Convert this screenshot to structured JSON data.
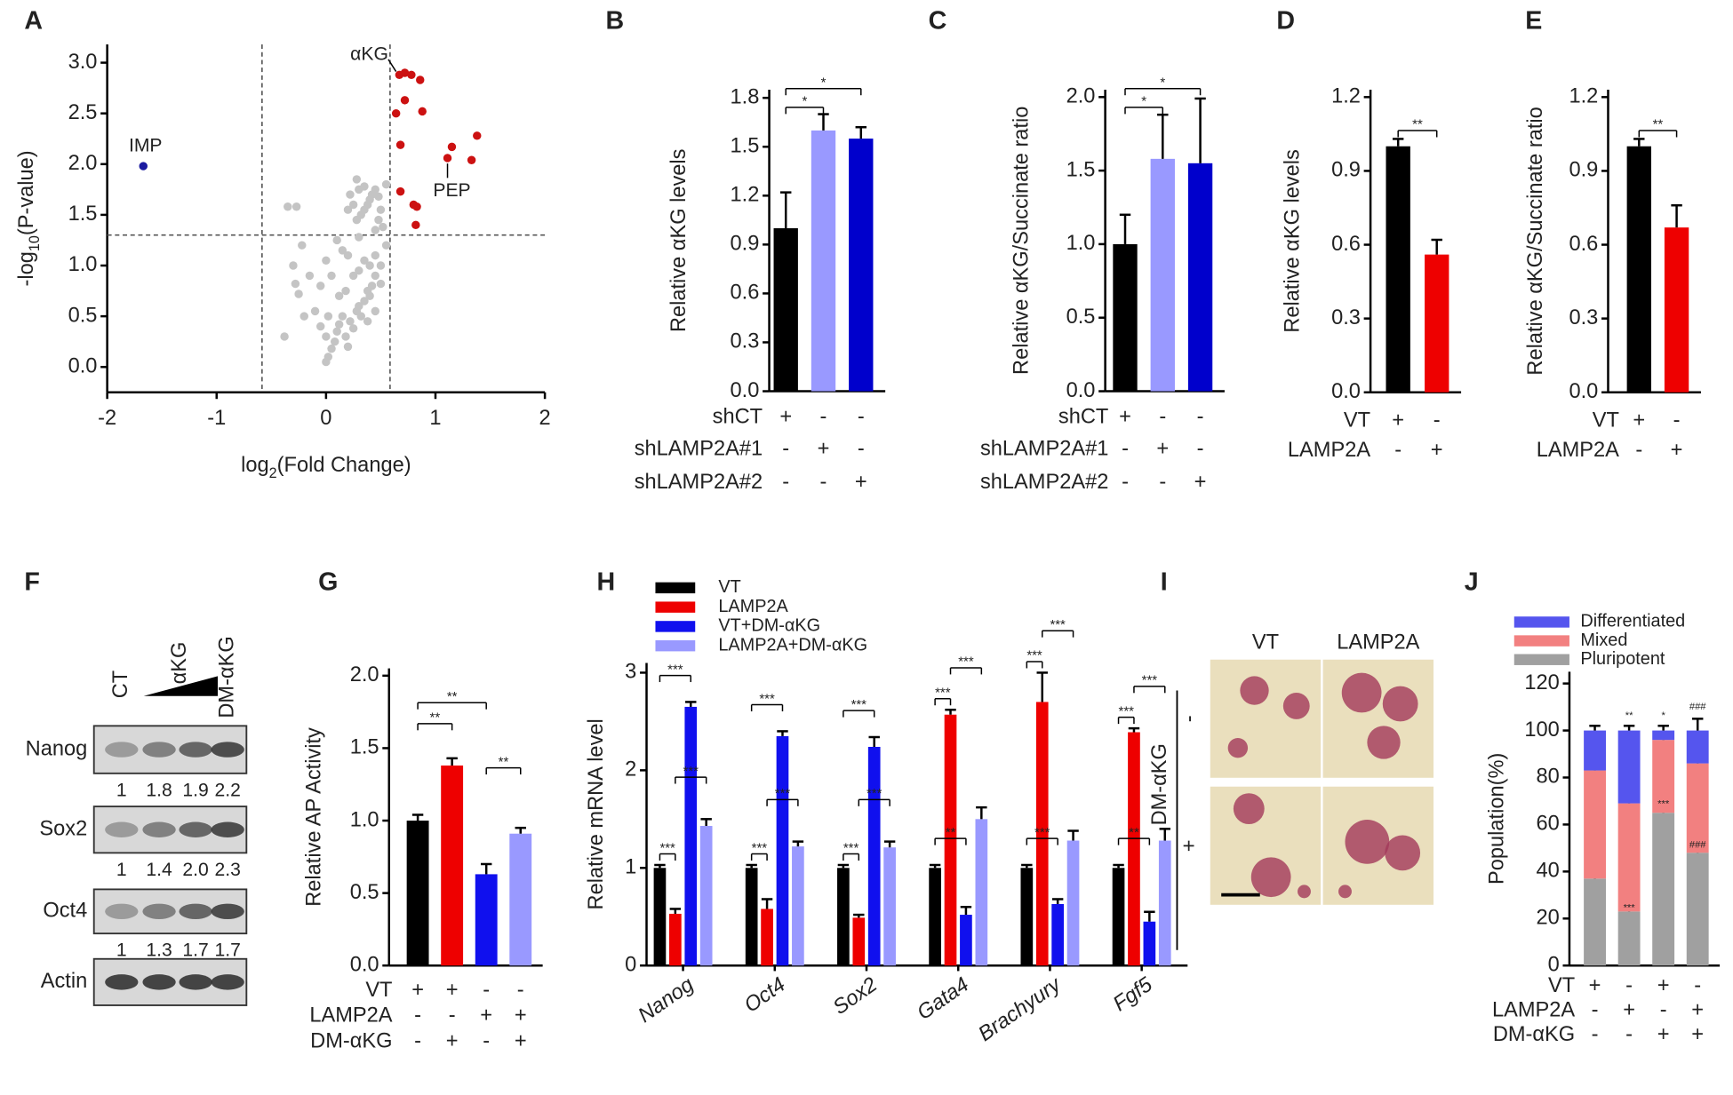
{
  "chart_data": [
    {
      "type": "scatter",
      "panel_label": "A",
      "ylabel_parts": [
        "-log",
        "10",
        "(P-value)"
      ],
      "xlabel_parts": [
        "log",
        "2",
        "(Fold Change)"
      ],
      "xlim": [
        -2,
        2
      ],
      "ylim": [
        -0.25,
        3.18
      ],
      "xticks": [
        -2,
        -1,
        0,
        1,
        2
      ],
      "yticks": [
        {
          "value": 0,
          "label": "0.0"
        },
        0.5,
        {
          "value": 1,
          "label": "1.0"
        },
        1.5,
        {
          "value": 2,
          "label": "2.0"
        },
        2.5,
        {
          "value": 3,
          "label": "3.0"
        }
      ],
      "thresholds": {
        "x": [
          -0.585,
          0.585
        ],
        "y": 1.3
      },
      "series": [
        {
          "color": "#c4c4c4",
          "x": [
            -0.35,
            -0.27,
            -0.3,
            -0.28,
            -0.25,
            -0.22,
            -0.15,
            -0.38,
            -0.2,
            -0.1,
            -0.05,
            0.0,
            0.02,
            0.05,
            0.08,
            0.0,
            0.1,
            0.12,
            0.15,
            0.18,
            0.2,
            0.22,
            0.25,
            0.28,
            0.3,
            0.32,
            0.35,
            0.38,
            0.4,
            0.42,
            0.45,
            0.5,
            0.55,
            0.3,
            0.25,
            0.2,
            0.15,
            0.1,
            0.05,
            0.18,
            0.35,
            0.4,
            0.45,
            0.3,
            0.28,
            0.32,
            0.35,
            0.38,
            0.4,
            0.42,
            0.45,
            0.3,
            0.28,
            0.35,
            0.48,
            0.5,
            0.55,
            0.25,
            0.2,
            0.22,
            0.48,
            0.52,
            0.45,
            0.5,
            0.45,
            0.38,
            0.12,
            -0.05,
            0.0,
            0.02
          ],
          "values": [
            1.58,
            1.58,
            1.0,
            0.82,
            0.72,
            1.2,
            0.9,
            0.3,
            0.5,
            0.55,
            0.4,
            0.05,
            0.1,
            0.18,
            0.25,
            0.3,
            0.35,
            0.42,
            0.5,
            0.3,
            0.2,
            0.45,
            0.38,
            0.55,
            0.6,
            0.5,
            0.65,
            0.75,
            0.7,
            0.8,
            0.9,
            1.0,
            1.2,
            0.95,
            0.9,
            1.1,
            1.15,
            1.25,
            0.9,
            0.75,
            1.05,
            1.0,
            1.1,
            1.28,
            1.45,
            1.5,
            1.55,
            1.6,
            1.65,
            1.7,
            1.75,
            1.75,
            1.85,
            1.78,
            1.68,
            1.55,
            1.8,
            1.6,
            1.55,
            1.7,
            1.45,
            1.38,
            1.35,
            0.82,
            0.55,
            0.45,
            0.7,
            0.8,
            1.05,
            0.5
          ]
        },
        {
          "color": "#cc1111",
          "x": [
            0.67,
            0.72,
            0.78,
            0.86,
            0.64,
            0.72,
            0.88,
            1.15,
            1.38,
            0.68,
            1.33,
            1.11,
            0.68,
            0.8,
            0.83,
            0.82
          ],
          "values": [
            2.88,
            2.9,
            2.88,
            2.83,
            2.5,
            2.63,
            2.52,
            2.17,
            2.28,
            2.19,
            2.04,
            2.06,
            1.73,
            1.6,
            1.58,
            1.4
          ]
        },
        {
          "color": "#1a1aa0",
          "x": [
            -1.67
          ],
          "values": [
            1.98
          ]
        }
      ],
      "annotations": [
        "αKG",
        "PEP",
        "IMP"
      ]
    },
    {
      "type": "bar",
      "panel_label": "B",
      "ylabel": "Relative αKG levels",
      "ylim": [
        0,
        1.85
      ],
      "yticks": [
        {
          "value": 0,
          "label": "0.0"
        },
        0.3,
        0.6,
        0.9,
        1.2,
        1.5,
        1.8
      ],
      "values": [
        1.0,
        1.6,
        1.55
      ],
      "errors": [
        0.22,
        0.1,
        0.07
      ],
      "colors": [
        "#000000",
        "#9999ff",
        "#0000cc"
      ],
      "conditions": [
        {
          "name": "shCT",
          "signs": [
            "+",
            "-",
            "-"
          ]
        },
        {
          "name": "shLAMP2A#1",
          "signs": [
            "-",
            "+",
            "-"
          ]
        },
        {
          "name": "shLAMP2A#2",
          "signs": [
            "-",
            "-",
            "+"
          ]
        }
      ],
      "significance": [
        "*",
        "*"
      ]
    },
    {
      "type": "bar",
      "panel_label": "C",
      "ylabel": "Relative αKG/Succinate ratio",
      "ylim": [
        0,
        2.05
      ],
      "yticks": [
        {
          "value": 0,
          "label": "0.0"
        },
        0.5,
        {
          "value": 1,
          "label": "1.0"
        },
        1.5,
        {
          "value": 2,
          "label": "2.0"
        }
      ],
      "values": [
        1.0,
        1.58,
        1.55
      ],
      "errors": [
        0.2,
        0.3,
        0.44
      ],
      "colors": [
        "#000000",
        "#9999ff",
        "#0000cc"
      ],
      "conditions": [
        {
          "name": "shCT",
          "signs": [
            "+",
            "-",
            "-"
          ]
        },
        {
          "name": "shLAMP2A#1",
          "signs": [
            "-",
            "+",
            "-"
          ]
        },
        {
          "name": "shLAMP2A#2",
          "signs": [
            "-",
            "-",
            "+"
          ]
        }
      ],
      "significance": [
        "*",
        "*"
      ]
    },
    {
      "type": "bar",
      "panel_label": "D",
      "ylabel": "Relative αKG levels",
      "ylim": [
        0,
        1.23
      ],
      "yticks": [
        {
          "value": 0,
          "label": "0.0"
        },
        0.3,
        0.6,
        0.9,
        1.2
      ],
      "values": [
        1.0,
        0.56
      ],
      "errors": [
        0.03,
        0.06
      ],
      "colors": [
        "#000000",
        "#ee0000"
      ],
      "conditions": [
        {
          "name": "VT",
          "signs": [
            "+",
            "-"
          ]
        },
        {
          "name": "LAMP2A",
          "signs": [
            "-",
            "+"
          ]
        }
      ],
      "significance": [
        "**"
      ]
    },
    {
      "type": "bar",
      "panel_label": "E",
      "ylabel": "Relative αKG/Succinate ratio",
      "ylim": [
        0,
        1.23
      ],
      "yticks": [
        {
          "value": 0,
          "label": "0.0"
        },
        0.3,
        0.6,
        0.9,
        1.2
      ],
      "values": [
        1.0,
        0.67
      ],
      "errors": [
        0.03,
        0.09
      ],
      "colors": [
        "#000000",
        "#ee0000"
      ],
      "conditions": [
        {
          "name": "VT",
          "signs": [
            "+",
            "-"
          ]
        },
        {
          "name": "LAMP2A",
          "signs": [
            "-",
            "+"
          ]
        }
      ],
      "significance": [
        "**"
      ]
    },
    {
      "type": "blot",
      "panel_label": "F",
      "lanes": [
        "CT",
        "αKG",
        "DM-αKG"
      ],
      "rows": [
        {
          "name": "Nanog",
          "quant": [
            "1",
            "1.8",
            "1.9",
            "2.2"
          ]
        },
        {
          "name": "Sox2",
          "quant": [
            "1",
            "1.4",
            "2.0",
            "2.3"
          ]
        },
        {
          "name": "Oct4",
          "quant": [
            "1",
            "1.3",
            "1.7",
            "1.7"
          ]
        },
        {
          "name": "Actin"
        }
      ]
    },
    {
      "type": "bar",
      "panel_label": "G",
      "ylabel": "Relative AP Activity",
      "ylim": [
        0,
        2.05
      ],
      "yticks": [
        {
          "value": 0,
          "label": "0.0"
        },
        0.5,
        {
          "value": 1,
          "label": "1.0"
        },
        1.5,
        {
          "value": 2,
          "label": "2.0"
        }
      ],
      "values": [
        1.0,
        1.38,
        0.63,
        0.91
      ],
      "errors": [
        0.04,
        0.05,
        0.07,
        0.04
      ],
      "colors": [
        "#000000",
        "#ee0000",
        "#1010ee",
        "#9999ff"
      ],
      "conditions": [
        {
          "name": "VT",
          "signs": [
            "+",
            "+",
            "-",
            "-"
          ]
        },
        {
          "name": "LAMP2A",
          "signs": [
            "-",
            "-",
            "+",
            "+"
          ]
        },
        {
          "name": "DM-αKG",
          "signs": [
            "-",
            "+",
            "-",
            "+"
          ]
        }
      ],
      "significance": [
        "**",
        "**",
        "**"
      ]
    },
    {
      "type": "grouped_bar",
      "panel_label": "H",
      "ylabel": "Relative mRNA level",
      "ylim": [
        0,
        3.1
      ],
      "yticks": [
        0,
        1,
        2,
        3
      ],
      "categories": [
        "Nanog",
        "Oct4",
        "Sox2",
        "Gata4",
        "Brachyury",
        "Fgf5"
      ],
      "series": [
        {
          "name": "VT",
          "color": "#000000",
          "values": [
            1.0,
            1.0,
            1.0,
            1.0,
            1.0,
            1.0
          ],
          "errors": [
            0.03,
            0.03,
            0.03,
            0.03,
            0.03,
            0.03
          ]
        },
        {
          "name": "LAMP2A",
          "color": "#ee0000",
          "values": [
            0.53,
            0.58,
            0.49,
            2.57,
            2.7,
            2.39
          ],
          "errors": [
            0.05,
            0.1,
            0.03,
            0.05,
            0.3,
            0.04
          ]
        },
        {
          "name": "VT+DM-αKG",
          "color": "#1010ee",
          "values": [
            2.65,
            2.35,
            2.24,
            0.52,
            0.63,
            0.45
          ],
          "errors": [
            0.05,
            0.05,
            0.1,
            0.08,
            0.05,
            0.1
          ]
        },
        {
          "name": "LAMP2A+DM-αKG",
          "color": "#9999ff",
          "values": [
            1.43,
            1.22,
            1.21,
            1.5,
            1.28,
            1.28
          ],
          "errors": [
            0.07,
            0.05,
            0.06,
            0.12,
            0.1,
            0.12
          ]
        }
      ],
      "significance": [
        [
          "***",
          "***",
          "***"
        ],
        [
          "***",
          "***",
          "***"
        ],
        [
          "***",
          "***",
          "***"
        ],
        [
          "***",
          "**",
          "***"
        ],
        [
          "***",
          "***",
          "***"
        ],
        [
          "***",
          "**",
          "***"
        ]
      ]
    },
    {
      "type": "image",
      "panel_label": "I",
      "columns": [
        "VT",
        "LAMP2A"
      ],
      "row_title": "DM-αKG",
      "rows": [
        "-",
        "+"
      ]
    },
    {
      "type": "stacked_bar",
      "panel_label": "J",
      "ylabel": "Population(%)",
      "ylim": [
        0,
        125
      ],
      "yticks": [
        0,
        20,
        40,
        60,
        80,
        100,
        120
      ],
      "series": [
        {
          "name": "Pluripotent",
          "color": "#a0a0a0",
          "values": [
            37,
            23,
            65,
            48
          ],
          "errors": [
            2,
            1.5,
            2.5,
            2.5
          ]
        },
        {
          "name": "Mixed",
          "color": "#f28080",
          "values": [
            46,
            46,
            31,
            38
          ],
          "errors": [
            1,
            2,
            1.5,
            1.5
          ]
        },
        {
          "name": "Differentiated",
          "color": "#5555ee",
          "values": [
            17,
            31,
            4,
            14
          ],
          "errors": [
            2,
            2,
            2,
            5
          ]
        }
      ],
      "conditions": [
        {
          "name": "VT",
          "signs": [
            "+",
            "-",
            "+",
            "-"
          ]
        },
        {
          "name": "LAMP2A",
          "signs": [
            "-",
            "+",
            "-",
            "+"
          ]
        },
        {
          "name": "DM-αKG",
          "signs": [
            "-",
            "-",
            "+",
            "+"
          ]
        }
      ],
      "annotations": [
        "**",
        "*",
        "###",
        "***",
        "***",
        "###"
      ]
    }
  ]
}
